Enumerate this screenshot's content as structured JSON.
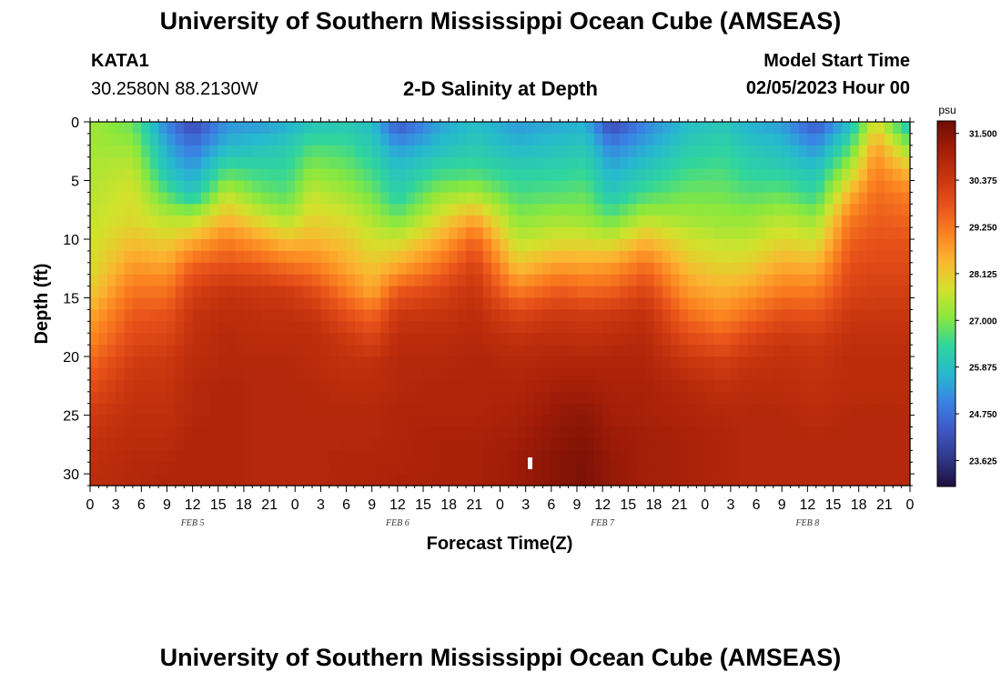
{
  "header": {
    "title": "University of Southern Mississippi Ocean Cube (AMSEAS)",
    "station_name": "KATA1",
    "station_coords": "30.2580N  88.2130W",
    "plot_title": "2-D Salinity at Depth",
    "model_start_label": "Model Start Time",
    "model_start_value": "02/05/2023 Hour 00"
  },
  "footer": {
    "title": "University of Southern Mississippi Ocean Cube (AMSEAS)"
  },
  "chart_data": {
    "type": "heatmap",
    "title": "2-D Salinity at Depth",
    "xlabel": "Forecast Time(Z)",
    "ylabel": "Depth (ft)",
    "x_ticks": [
      "0",
      "3",
      "6",
      "9",
      "12",
      "15",
      "18",
      "21",
      "0",
      "3",
      "6",
      "9",
      "12",
      "15",
      "18",
      "21",
      "0",
      "3",
      "6",
      "9",
      "12",
      "15",
      "18",
      "21",
      "0",
      "3",
      "6",
      "9",
      "12",
      "15",
      "18",
      "21",
      "0"
    ],
    "x_range_hours": [
      0,
      96
    ],
    "date_labels": [
      {
        "label": "FEB 5",
        "hour": 12
      },
      {
        "label": "FEB 6",
        "hour": 36
      },
      {
        "label": "FEB 7",
        "hour": 60
      },
      {
        "label": "FEB 8",
        "hour": 84
      }
    ],
    "y_ticks": [
      0,
      5,
      10,
      15,
      20,
      25,
      30
    ],
    "y_range_ft": [
      0,
      31
    ],
    "y_inverted": true,
    "colorbar": {
      "unit": "psu",
      "min": 23.0,
      "max": 31.8,
      "tick_labels": [
        "31.500",
        "30.375",
        "29.250",
        "28.125",
        "27.000",
        "25.875",
        "24.750",
        "23.625"
      ],
      "tick_values": [
        31.5,
        30.375,
        29.25,
        28.125,
        27.0,
        25.875,
        24.75,
        23.625
      ],
      "colors": [
        "#1e0e3c",
        "#30388a",
        "#3e57c4",
        "#3a82e4",
        "#26b9cf",
        "#2fd59e",
        "#88e83e",
        "#d2e22c",
        "#fbb631",
        "#fb8120",
        "#e8521a",
        "#c8350e",
        "#a31d08",
        "#6e0d05"
      ]
    },
    "profile_hours": [
      0,
      5,
      9,
      12,
      16,
      20,
      23,
      26,
      30,
      33,
      36,
      41,
      45,
      50,
      55,
      58,
      61,
      65,
      70,
      74,
      77,
      81,
      85,
      89,
      92,
      96
    ],
    "profiles": [
      [
        27.3,
        27.3,
        27.4,
        27.5,
        27.6,
        27.7,
        27.8,
        28.1,
        28.6,
        29.0,
        29.5,
        29.9,
        30.3,
        30.5,
        30.6,
        30.7
      ],
      [
        26.8,
        27.2,
        27.6,
        27.8,
        27.9,
        28.3,
        28.8,
        29.3,
        29.7,
        30.0,
        30.3,
        30.5,
        30.6,
        30.7,
        30.8,
        30.8
      ],
      [
        25.0,
        25.5,
        25.9,
        26.7,
        27.5,
        28.1,
        28.7,
        29.3,
        29.8,
        30.1,
        30.4,
        30.5,
        30.6,
        30.7,
        30.8,
        30.9
      ],
      [
        24.0,
        24.8,
        25.4,
        26.0,
        27.5,
        28.6,
        29.6,
        30.2,
        30.5,
        30.6,
        30.7,
        30.8,
        30.8,
        30.9,
        30.9,
        30.9
      ],
      [
        25.2,
        25.7,
        26.6,
        27.6,
        28.4,
        29.2,
        29.9,
        30.5,
        30.7,
        30.8,
        30.8,
        30.9,
        30.9,
        30.9,
        30.9,
        30.9
      ],
      [
        25.3,
        25.9,
        26.4,
        26.9,
        27.8,
        28.8,
        29.7,
        30.4,
        30.6,
        30.7,
        30.8,
        30.8,
        30.8,
        30.8,
        30.8,
        30.8
      ],
      [
        25.5,
        26.1,
        26.4,
        26.7,
        27.4,
        28.4,
        29.4,
        30.3,
        30.6,
        30.7,
        30.8,
        30.8,
        30.8,
        30.8,
        30.8,
        30.8
      ],
      [
        25.9,
        26.6,
        27.1,
        27.6,
        28.0,
        28.5,
        29.2,
        30.0,
        30.5,
        30.7,
        30.7,
        30.8,
        30.8,
        30.8,
        30.8,
        30.8
      ],
      [
        26.0,
        26.5,
        26.9,
        27.3,
        27.8,
        28.2,
        28.6,
        29.2,
        29.9,
        30.4,
        30.6,
        30.7,
        30.8,
        30.8,
        30.9,
        30.9
      ],
      [
        25.8,
        26.1,
        26.5,
        26.9,
        27.4,
        27.8,
        28.2,
        28.6,
        29.5,
        30.1,
        30.6,
        30.7,
        30.8,
        30.8,
        30.9,
        30.9
      ],
      [
        24.3,
        25.3,
        25.9,
        26.2,
        26.9,
        27.8,
        28.6,
        29.7,
        30.4,
        30.7,
        30.8,
        30.8,
        30.9,
        30.9,
        30.9,
        31.0
      ],
      [
        25.4,
        25.8,
        26.4,
        27.2,
        27.9,
        28.6,
        29.4,
        30.1,
        30.5,
        30.7,
        30.8,
        30.9,
        30.9,
        31.0,
        31.0,
        31.0
      ],
      [
        25.8,
        26.1,
        26.5,
        27.4,
        28.6,
        29.6,
        30.2,
        30.5,
        30.7,
        30.8,
        30.9,
        30.9,
        30.9,
        31.0,
        31.0,
        31.0
      ],
      [
        25.3,
        25.7,
        26.2,
        26.6,
        27.1,
        27.6,
        28.3,
        29.2,
        30.1,
        30.6,
        30.8,
        30.9,
        31.0,
        31.1,
        31.2,
        31.2
      ],
      [
        25.5,
        25.9,
        26.3,
        26.7,
        27.3,
        27.9,
        28.8,
        29.7,
        30.4,
        30.7,
        30.9,
        31.1,
        31.3,
        31.4,
        31.5,
        31.5
      ],
      [
        25.6,
        26.0,
        26.4,
        26.8,
        27.2,
        27.9,
        28.7,
        29.5,
        30.3,
        30.6,
        30.9,
        31.1,
        31.4,
        31.5,
        31.6,
        31.6
      ],
      [
        24.0,
        25.0,
        25.6,
        26.0,
        26.8,
        27.8,
        28.8,
        29.6,
        30.4,
        30.7,
        30.9,
        31.0,
        31.1,
        31.2,
        31.3,
        31.3
      ],
      [
        25.0,
        25.5,
        26.0,
        26.6,
        27.5,
        28.5,
        29.4,
        30.1,
        30.6,
        30.8,
        30.9,
        31.0,
        31.0,
        31.1,
        31.1,
        31.1
      ],
      [
        25.8,
        26.1,
        26.5,
        26.9,
        27.3,
        27.8,
        28.3,
        28.8,
        29.4,
        30.0,
        30.5,
        30.8,
        30.9,
        31.0,
        31.0,
        31.0
      ],
      [
        26.0,
        26.3,
        26.6,
        26.9,
        27.2,
        27.6,
        28.0,
        28.5,
        29.0,
        29.7,
        30.3,
        30.6,
        30.8,
        30.9,
        30.9,
        30.9
      ],
      [
        25.6,
        26.0,
        26.3,
        26.7,
        27.2,
        27.6,
        28.1,
        28.7,
        29.4,
        30.1,
        30.5,
        30.7,
        30.8,
        30.8,
        30.8,
        30.8
      ],
      [
        25.3,
        25.8,
        26.2,
        26.8,
        27.5,
        28.0,
        28.6,
        29.2,
        29.9,
        30.4,
        30.6,
        30.7,
        30.8,
        30.8,
        30.8,
        30.8
      ],
      [
        24.3,
        25.2,
        25.9,
        26.4,
        27.2,
        27.8,
        28.5,
        29.2,
        29.8,
        30.3,
        30.5,
        30.6,
        30.7,
        30.8,
        30.8,
        30.8
      ],
      [
        25.8,
        26.6,
        27.5,
        28.5,
        29.2,
        29.6,
        29.9,
        30.1,
        30.4,
        30.6,
        30.7,
        30.7,
        30.8,
        30.8,
        30.8,
        30.8
      ],
      [
        27.8,
        28.7,
        29.1,
        29.4,
        29.6,
        29.8,
        30.0,
        30.2,
        30.4,
        30.6,
        30.7,
        30.7,
        30.8,
        30.8,
        30.8,
        30.8
      ],
      [
        25.8,
        27.0,
        28.3,
        29.1,
        29.5,
        29.8,
        30.0,
        30.2,
        30.4,
        30.6,
        30.7,
        30.7,
        30.8,
        30.8,
        30.8,
        30.8
      ]
    ]
  }
}
